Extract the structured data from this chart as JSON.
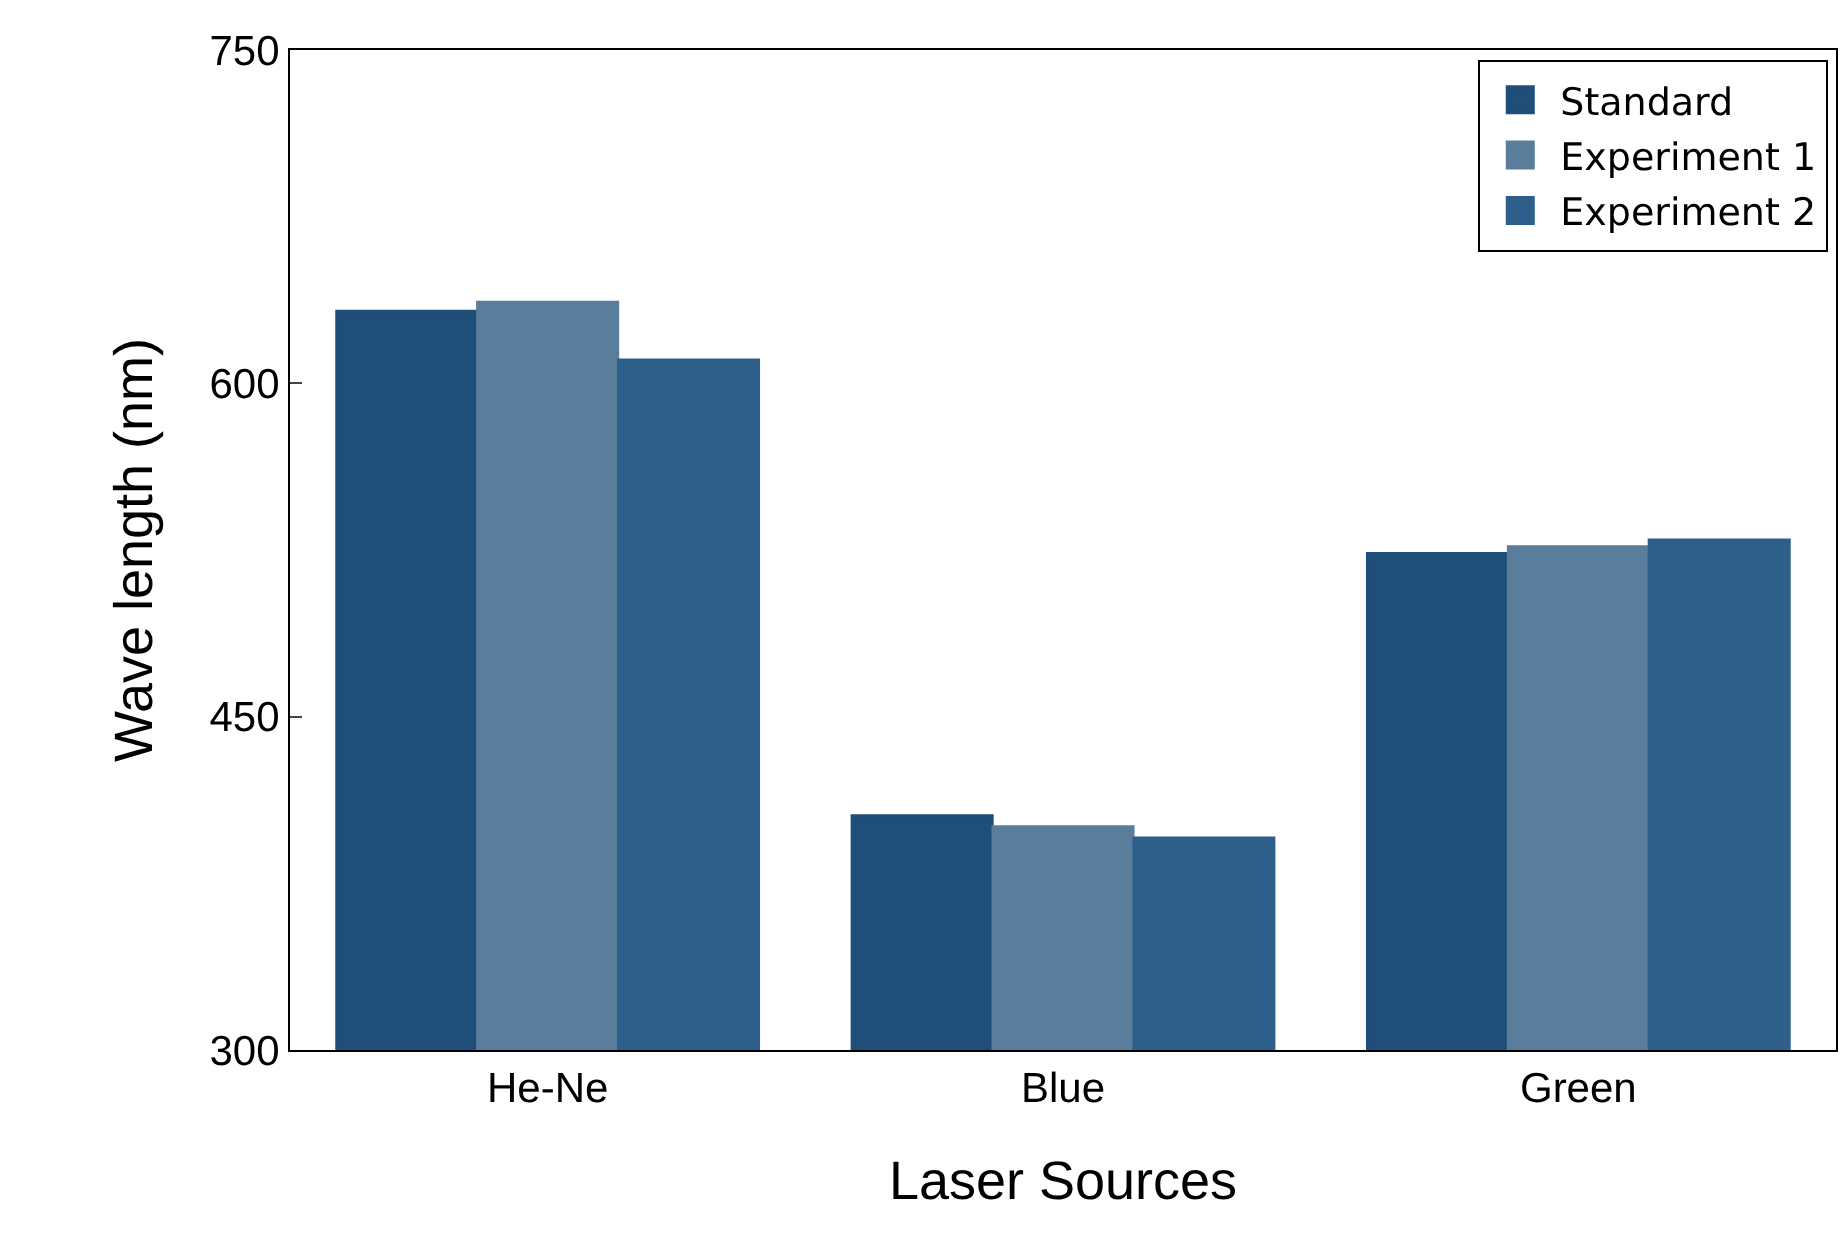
{
  "chart_data": {
    "type": "bar",
    "xlabel": "Laser Sources",
    "ylabel": "Wave length (nm)",
    "categories": [
      "He-Ne",
      "Blue",
      "Green"
    ],
    "series": [
      {
        "name": "Standard",
        "color": "#1f4e79",
        "values": [
          632,
          405,
          523
        ]
      },
      {
        "name": "Experiment 1",
        "color": "#5a7d9c",
        "values": [
          636,
          400,
          526
        ]
      },
      {
        "name": "Experiment 2",
        "color": "#2e5f8a",
        "values": [
          610,
          395,
          529
        ]
      }
    ],
    "ylim": [
      300,
      750
    ],
    "yticks": [
      300,
      450,
      600,
      750
    ],
    "grid": false,
    "legend": "top right"
  }
}
